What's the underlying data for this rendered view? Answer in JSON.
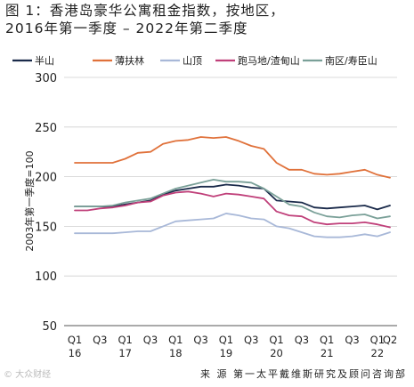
{
  "title_line1": "图 1：香港岛豪华公寓租金指数，按地区，",
  "title_line2": "2016年第一季度 – 2022年第二季度",
  "source": "来 源 第一太平戴维斯研究及顾问咨询部",
  "watermark": "© 大众财经",
  "chart_data": {
    "type": "line",
    "ylabel": "2003年第一季度=100",
    "ylim": [
      50,
      300
    ],
    "yticks": [
      50,
      100,
      150,
      200,
      250,
      300
    ],
    "grid": true,
    "legend_position": "top",
    "x": [
      "Q1 16",
      "Q2 16",
      "Q3 16",
      "Q4 16",
      "Q1 17",
      "Q2 17",
      "Q3 17",
      "Q4 17",
      "Q1 18",
      "Q2 18",
      "Q3 18",
      "Q4 18",
      "Q1 19",
      "Q2 19",
      "Q3 19",
      "Q4 19",
      "Q1 20",
      "Q2 20",
      "Q3 20",
      "Q4 20",
      "Q1 21",
      "Q2 21",
      "Q3 21",
      "Q4 21",
      "Q1 22",
      "Q2 22"
    ],
    "tick_labels": [
      {
        "i": 0,
        "line1": "Q1",
        "line2": "16"
      },
      {
        "i": 2,
        "line1": "Q3",
        "line2": ""
      },
      {
        "i": 4,
        "line1": "Q1",
        "line2": "17"
      },
      {
        "i": 6,
        "line1": "Q3",
        "line2": ""
      },
      {
        "i": 8,
        "line1": "Q1",
        "line2": "18"
      },
      {
        "i": 10,
        "line1": "Q3",
        "line2": ""
      },
      {
        "i": 12,
        "line1": "Q1",
        "line2": "19"
      },
      {
        "i": 14,
        "line1": "Q3",
        "line2": ""
      },
      {
        "i": 16,
        "line1": "Q1",
        "line2": "20"
      },
      {
        "i": 18,
        "line1": "Q3",
        "line2": ""
      },
      {
        "i": 20,
        "line1": "Q1",
        "line2": "21"
      },
      {
        "i": 22,
        "line1": "Q3",
        "line2": ""
      },
      {
        "i": 24,
        "line1": "Q1",
        "line2": "22"
      },
      {
        "i": 25,
        "line1": "Q2",
        "line2": ""
      }
    ],
    "series": [
      {
        "name": "半山",
        "color": "#1a2a4a",
        "values": [
          170,
          170,
          170,
          170,
          172,
          174,
          176,
          182,
          186,
          188,
          190,
          190,
          192,
          191,
          189,
          188,
          176,
          175,
          174,
          169,
          168,
          169,
          170,
          171,
          167,
          171
        ]
      },
      {
        "name": "薄扶林",
        "color": "#e0713a",
        "values": [
          214,
          214,
          214,
          214,
          218,
          224,
          225,
          233,
          236,
          237,
          240,
          239,
          240,
          236,
          231,
          228,
          214,
          207,
          207,
          203,
          202,
          203,
          205,
          207,
          202,
          199
        ]
      },
      {
        "name": "山顶",
        "color": "#a8b8d8",
        "values": [
          143,
          143,
          143,
          143,
          144,
          145,
          145,
          150,
          155,
          156,
          157,
          158,
          163,
          161,
          158,
          157,
          150,
          148,
          144,
          140,
          139,
          139,
          140,
          142,
          140,
          144
        ]
      },
      {
        "name": "跑马地/渣甸山",
        "color": "#c0407a",
        "values": [
          166,
          166,
          168,
          169,
          171,
          174,
          175,
          181,
          184,
          185,
          183,
          180,
          183,
          182,
          180,
          178,
          165,
          161,
          160,
          154,
          152,
          153,
          153,
          154,
          152,
          149
        ]
      },
      {
        "name": "南区/寿臣山",
        "color": "#7aa098",
        "values": [
          170,
          170,
          170,
          171,
          174,
          176,
          178,
          183,
          188,
          191,
          194,
          197,
          195,
          195,
          194,
          188,
          180,
          172,
          170,
          164,
          160,
          159,
          161,
          162,
          158,
          160
        ]
      }
    ]
  }
}
